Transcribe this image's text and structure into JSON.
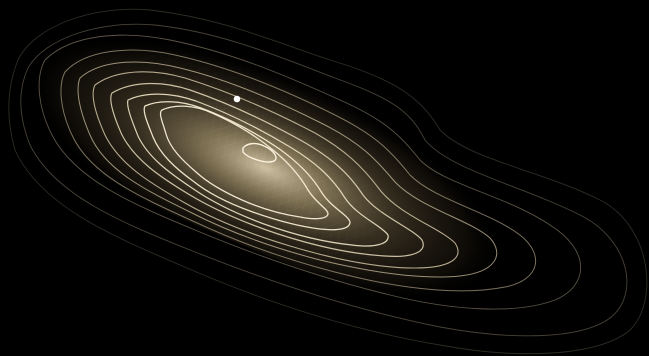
{
  "scene": {
    "background_color": "#000000",
    "contour_color": "#e9dcc0",
    "glow_color": "#d6c7a3",
    "grid_color": "#a99a7a",
    "marker_color": "#ffffff",
    "contour_level_count": 11,
    "marker_count": 1
  }
}
